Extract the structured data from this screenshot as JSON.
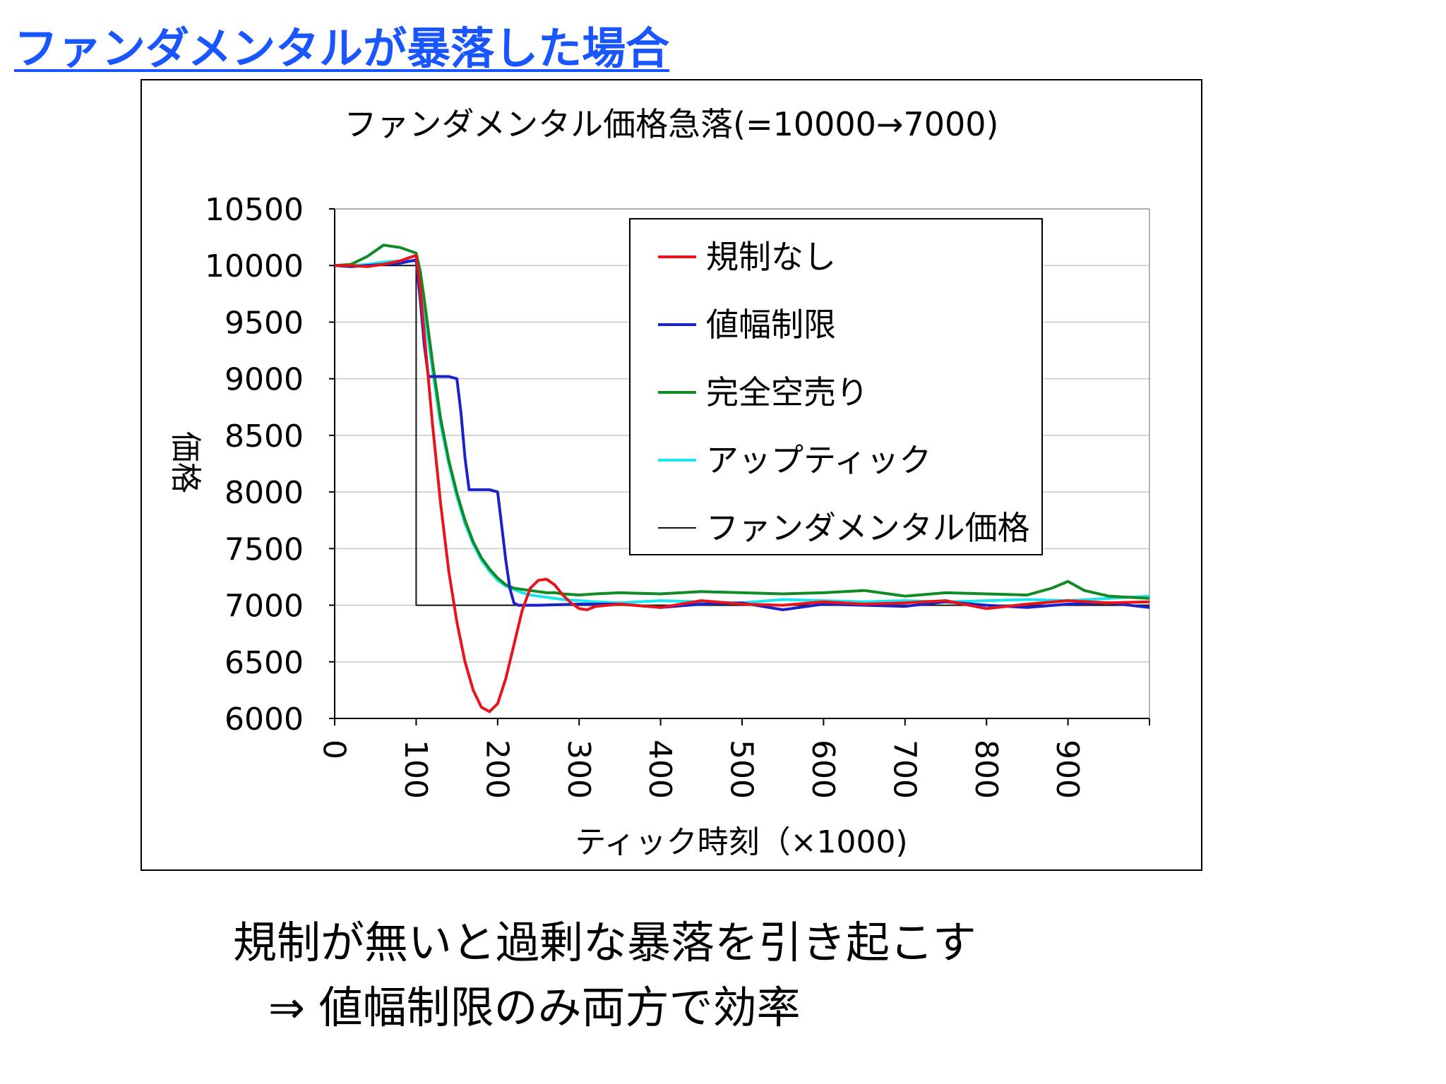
{
  "slide": {
    "title": "ファンダメンタルが暴落した場合",
    "conclusion_line1": "規制が無いと過剰な暴落を引き起こす",
    "conclusion_line2": "⇒ 値幅制限のみ両方で効率"
  },
  "chart_data": {
    "type": "line",
    "title": "ファンダメンタル価格急落(=10000→7000)",
    "xlabel": "ティック時刻（×1000)",
    "ylabel": "価格",
    "xlim": [
      0,
      1000
    ],
    "ylim": [
      6000,
      10500
    ],
    "yticks": [
      6000,
      6500,
      7000,
      7500,
      8000,
      8500,
      9000,
      9500,
      10000,
      10500
    ],
    "xticks": [
      0,
      100,
      200,
      300,
      400,
      500,
      600,
      700,
      800,
      900
    ],
    "grid": true,
    "legend_position": "top-right",
    "series": [
      {
        "name": "規制なし",
        "color": "#e8141c",
        "x": [
          0,
          20,
          40,
          50,
          60,
          80,
          100,
          105,
          110,
          115,
          120,
          130,
          140,
          150,
          160,
          170,
          180,
          190,
          200,
          210,
          220,
          230,
          240,
          250,
          260,
          270,
          280,
          290,
          300,
          310,
          320,
          350,
          400,
          450,
          500,
          550,
          600,
          650,
          700,
          750,
          800,
          850,
          900,
          950,
          1000
        ],
        "y": [
          10000,
          10000,
          9990,
          10000,
          10010,
          10040,
          10090,
          9800,
          9400,
          9000,
          8600,
          7900,
          7300,
          6850,
          6500,
          6250,
          6100,
          6060,
          6130,
          6350,
          6650,
          6950,
          7150,
          7220,
          7230,
          7180,
          7090,
          7020,
          6970,
          6960,
          6990,
          7010,
          6980,
          7040,
          7010,
          7000,
          7030,
          7010,
          7020,
          7040,
          6970,
          7010,
          7040,
          7020,
          7030
        ]
      },
      {
        "name": "値幅制限",
        "color": "#1a22c8",
        "x": [
          0,
          20,
          40,
          60,
          80,
          100,
          105,
          110,
          115,
          120,
          125,
          130,
          140,
          150,
          155,
          160,
          165,
          170,
          180,
          190,
          200,
          205,
          210,
          215,
          220,
          225,
          230,
          250,
          300,
          350,
          400,
          450,
          500,
          550,
          600,
          650,
          700,
          750,
          800,
          850,
          900,
          950,
          1000
        ],
        "y": [
          10000,
          9990,
          10000,
          10010,
          10020,
          10050,
          9700,
          9300,
          9020,
          9020,
          9020,
          9020,
          9020,
          9000,
          8700,
          8300,
          8020,
          8020,
          8020,
          8020,
          8000,
          7700,
          7400,
          7150,
          7020,
          7000,
          7000,
          7000,
          7010,
          7010,
          6980,
          7010,
          7020,
          6960,
          7010,
          7000,
          6990,
          7030,
          7000,
          6980,
          7010,
          7020,
          6980
        ]
      },
      {
        "name": "完全空売り",
        "color": "#128a26",
        "x": [
          0,
          20,
          40,
          60,
          80,
          100,
          105,
          110,
          120,
          130,
          140,
          150,
          160,
          170,
          180,
          190,
          200,
          210,
          220,
          230,
          240,
          250,
          260,
          270,
          280,
          300,
          320,
          350,
          400,
          450,
          500,
          550,
          600,
          650,
          700,
          750,
          800,
          850,
          880,
          900,
          920,
          950,
          1000
        ],
        "y": [
          10000,
          10010,
          10080,
          10180,
          10160,
          10110,
          9950,
          9700,
          9150,
          8650,
          8280,
          7990,
          7750,
          7560,
          7420,
          7320,
          7240,
          7180,
          7150,
          7140,
          7130,
          7120,
          7110,
          7110,
          7100,
          7090,
          7100,
          7110,
          7100,
          7120,
          7110,
          7100,
          7110,
          7130,
          7080,
          7110,
          7100,
          7090,
          7150,
          7210,
          7130,
          7080,
          7060
        ]
      },
      {
        "name": "アップティック",
        "color": "#1ae6ee",
        "x": [
          0,
          20,
          40,
          60,
          80,
          100,
          105,
          110,
          120,
          130,
          140,
          150,
          160,
          170,
          180,
          190,
          200,
          210,
          220,
          230,
          240,
          250,
          260,
          270,
          280,
          300,
          320,
          350,
          400,
          450,
          500,
          550,
          600,
          650,
          700,
          750,
          800,
          850,
          900,
          950,
          1000
        ],
        "y": [
          10000,
          10000,
          10010,
          10030,
          10040,
          10040,
          9850,
          9600,
          9080,
          8600,
          8250,
          7960,
          7720,
          7540,
          7400,
          7300,
          7220,
          7170,
          7140,
          7110,
          7090,
          7080,
          7070,
          7060,
          7050,
          7040,
          7030,
          7020,
          7040,
          7030,
          7020,
          7050,
          7040,
          7030,
          7040,
          7030,
          7040,
          7050,
          7040,
          7060,
          7080
        ]
      },
      {
        "name": "ファンダメンタル価格",
        "color": "#111111",
        "x": [
          0,
          100,
          100,
          1000
        ],
        "y": [
          10000,
          10000,
          7000,
          7000
        ]
      }
    ]
  }
}
